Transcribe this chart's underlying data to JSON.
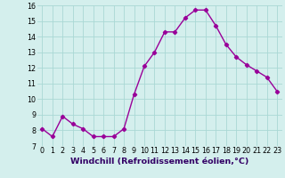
{
  "x": [
    0,
    1,
    2,
    3,
    4,
    5,
    6,
    7,
    8,
    9,
    10,
    11,
    12,
    13,
    14,
    15,
    16,
    17,
    18,
    19,
    20,
    21,
    22,
    23
  ],
  "y": [
    8.1,
    7.6,
    8.9,
    8.4,
    8.1,
    7.6,
    7.6,
    7.6,
    8.1,
    10.3,
    12.1,
    13.0,
    14.3,
    14.3,
    15.2,
    15.7,
    15.7,
    14.7,
    13.5,
    12.7,
    12.2,
    11.8,
    11.4,
    10.5
  ],
  "line_color": "#990099",
  "marker": "D",
  "marker_size": 2.2,
  "bg_color": "#d4efed",
  "grid_color": "#aad8d5",
  "xlabel": "Windchill (Refroidissement éolien,°C)",
  "xlabel_fontsize": 6.8,
  "ylim": [
    7,
    16
  ],
  "xlim": [
    -0.5,
    23.5
  ],
  "yticks": [
    7,
    8,
    9,
    10,
    11,
    12,
    13,
    14,
    15,
    16
  ],
  "xticks": [
    0,
    1,
    2,
    3,
    4,
    5,
    6,
    7,
    8,
    9,
    10,
    11,
    12,
    13,
    14,
    15,
    16,
    17,
    18,
    19,
    20,
    21,
    22,
    23
  ],
  "tick_fontsize": 5.8,
  "line_width": 1.0
}
